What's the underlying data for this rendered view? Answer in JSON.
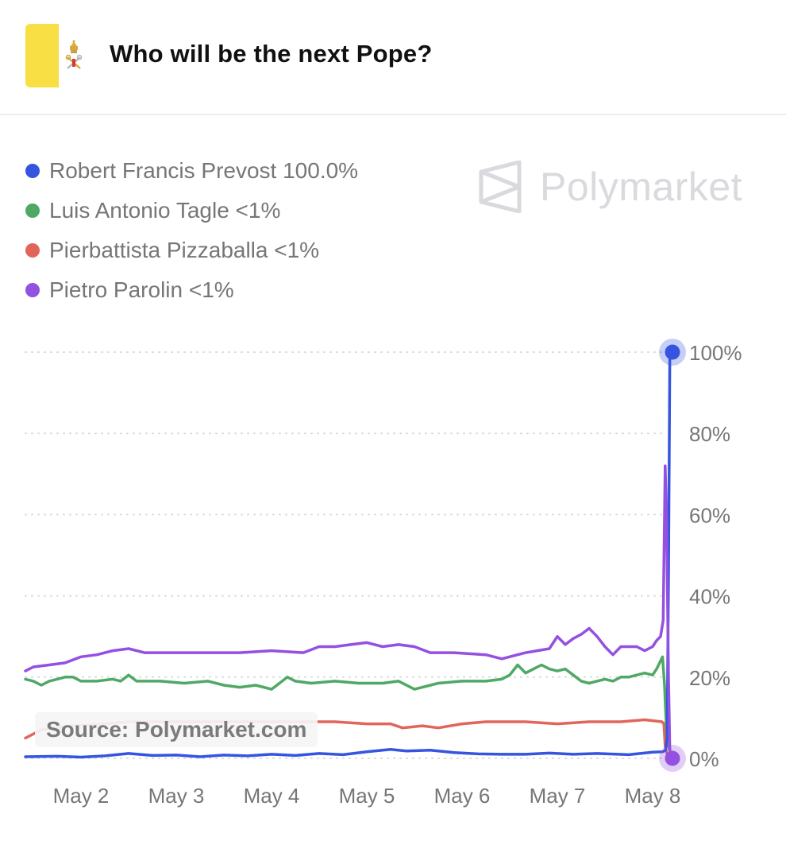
{
  "header": {
    "title": "Who will be the next Pope?",
    "flag_colors": [
      "#f8e044",
      "#ffffff"
    ],
    "emblem_icon": "papal-keys-emblem-icon"
  },
  "legend": {
    "items": [
      {
        "label": "Robert Francis Prevost 100.0%",
        "color": "#3554e0"
      },
      {
        "label": "Luis Antonio Tagle <1%",
        "color": "#4fa865"
      },
      {
        "label": "Pierbattista Pizzaballa <1%",
        "color": "#e2655b"
      },
      {
        "label": "Pietro Parolin <1%",
        "color": "#9450e0"
      }
    ]
  },
  "logo": {
    "text": "Polymarket",
    "icon": "polymarket-logo-icon"
  },
  "source": "Source: Polymarket.com",
  "chart_data": {
    "type": "line",
    "x_unit": "date",
    "xlim": [
      "May 1 22:00",
      "May 8 17:00"
    ],
    "x_ticks": [
      {
        "label": "May 2",
        "value": "May 2 12:00"
      },
      {
        "label": "May 3",
        "value": "May 3 12:00"
      },
      {
        "label": "May 4",
        "value": "May 4 12:00"
      },
      {
        "label": "May 5",
        "value": "May 5 12:00"
      },
      {
        "label": "May 6",
        "value": "May 6 12:00"
      },
      {
        "label": "May 7",
        "value": "May 7 12:00"
      },
      {
        "label": "May 8",
        "value": "May 8 12:00"
      }
    ],
    "y_ticks": [
      {
        "label": "100%",
        "value": 100
      },
      {
        "label": "80%",
        "value": 80
      },
      {
        "label": "60%",
        "value": 60
      },
      {
        "label": "40%",
        "value": 40
      },
      {
        "label": "20%",
        "value": 20
      },
      {
        "label": "0%",
        "value": 0
      }
    ],
    "ylim": [
      0,
      100
    ],
    "grid": "horizontal dotted",
    "y_axis_position": "right",
    "series": [
      {
        "name": "Pierbattista Pizzaballa",
        "color": "#e2655b",
        "points": [
          [
            "May 1 22:00",
            5
          ],
          [
            "May 2 02:00",
            7
          ],
          [
            "May 2 10:00",
            8
          ],
          [
            "May 2 18:00",
            8.5
          ],
          [
            "May 3 00:00",
            9
          ],
          [
            "May 3 08:00",
            9
          ],
          [
            "May 3 20:00",
            9
          ],
          [
            "May 4 06:00",
            9
          ],
          [
            "May 4 18:00",
            9
          ],
          [
            "May 5 04:00",
            9
          ],
          [
            "May 5 12:00",
            8.5
          ],
          [
            "May 5 18:00",
            8.5
          ],
          [
            "May 5 21:00",
            7.5
          ],
          [
            "May 6 02:00",
            8
          ],
          [
            "May 6 06:00",
            7.5
          ],
          [
            "May 6 12:00",
            8.5
          ],
          [
            "May 6 18:00",
            9
          ],
          [
            "May 7 04:00",
            9
          ],
          [
            "May 7 12:00",
            8.5
          ],
          [
            "May 7 20:00",
            9
          ],
          [
            "May 8 04:00",
            9
          ],
          [
            "May 8 10:00",
            9.5
          ],
          [
            "May 8 14:20",
            9
          ],
          [
            "May 8 14:50",
            8.5
          ],
          [
            "May 8 15:10",
            3
          ],
          [
            "May 8 15:40",
            1
          ],
          [
            "May 8 17:00",
            0
          ]
        ]
      },
      {
        "name": "Luis Antonio Tagle",
        "color": "#4fa865",
        "points": [
          [
            "May 1 22:00",
            19.5
          ],
          [
            "May 2 00:00",
            19
          ],
          [
            "May 2 02:00",
            18
          ],
          [
            "May 2 04:00",
            19
          ],
          [
            "May 2 06:00",
            19.5
          ],
          [
            "May 2 08:00",
            20
          ],
          [
            "May 2 10:00",
            20
          ],
          [
            "May 2 12:00",
            19
          ],
          [
            "May 2 16:00",
            19
          ],
          [
            "May 2 20:00",
            19.5
          ],
          [
            "May 2 22:00",
            19
          ],
          [
            "May 3 00:00",
            20.5
          ],
          [
            "May 3 02:00",
            19
          ],
          [
            "May 3 08:00",
            19
          ],
          [
            "May 3 14:00",
            18.5
          ],
          [
            "May 3 20:00",
            19
          ],
          [
            "May 4 00:00",
            18
          ],
          [
            "May 4 04:00",
            17.5
          ],
          [
            "May 4 08:00",
            18
          ],
          [
            "May 4 12:00",
            17
          ],
          [
            "May 4 14:00",
            18.5
          ],
          [
            "May 4 16:00",
            20
          ],
          [
            "May 4 18:00",
            19
          ],
          [
            "May 4 22:00",
            18.5
          ],
          [
            "May 5 04:00",
            19
          ],
          [
            "May 5 10:00",
            18.5
          ],
          [
            "May 5 16:00",
            18.5
          ],
          [
            "May 5 20:00",
            19
          ],
          [
            "May 6 00:00",
            17
          ],
          [
            "May 6 02:00",
            17.5
          ],
          [
            "May 6 06:00",
            18.5
          ],
          [
            "May 6 12:00",
            19
          ],
          [
            "May 6 18:00",
            19
          ],
          [
            "May 6 22:00",
            19.5
          ],
          [
            "May 7 00:00",
            20.5
          ],
          [
            "May 7 02:00",
            23
          ],
          [
            "May 7 04:00",
            21
          ],
          [
            "May 7 06:00",
            22
          ],
          [
            "May 7 08:00",
            23
          ],
          [
            "May 7 10:00",
            22
          ],
          [
            "May 7 12:00",
            21.5
          ],
          [
            "May 7 14:00",
            22
          ],
          [
            "May 7 16:00",
            20.5
          ],
          [
            "May 7 18:00",
            19
          ],
          [
            "May 7 20:00",
            18.5
          ],
          [
            "May 7 22:00",
            19
          ],
          [
            "May 8 00:00",
            19.5
          ],
          [
            "May 8 02:00",
            19
          ],
          [
            "May 8 04:00",
            20
          ],
          [
            "May 8 06:00",
            20
          ],
          [
            "May 8 08:00",
            20.5
          ],
          [
            "May 8 10:00",
            21
          ],
          [
            "May 8 12:00",
            20.5
          ],
          [
            "May 8 13:00",
            22
          ],
          [
            "May 8 14:00",
            24
          ],
          [
            "May 8 14:30",
            25
          ],
          [
            "May 8 15:00",
            18
          ],
          [
            "May 8 15:15",
            12
          ],
          [
            "May 8 15:40",
            4
          ],
          [
            "May 8 17:00",
            0
          ]
        ]
      },
      {
        "name": "Robert Francis Prevost",
        "color": "#3554e0",
        "points": [
          [
            "May 1 22:00",
            0.4
          ],
          [
            "May 2 06:00",
            0.5
          ],
          [
            "May 2 12:00",
            0.3
          ],
          [
            "May 2 18:00",
            0.6
          ],
          [
            "May 3 00:00",
            1.2
          ],
          [
            "May 3 06:00",
            0.7
          ],
          [
            "May 3 12:00",
            0.8
          ],
          [
            "May 3 18:00",
            0.4
          ],
          [
            "May 4 00:00",
            0.8
          ],
          [
            "May 4 06:00",
            0.6
          ],
          [
            "May 4 12:00",
            1
          ],
          [
            "May 4 18:00",
            0.7
          ],
          [
            "May 5 00:00",
            1.2
          ],
          [
            "May 5 06:00",
            0.9
          ],
          [
            "May 5 12:00",
            1.6
          ],
          [
            "May 5 18:00",
            2.2
          ],
          [
            "May 5 22:00",
            1.8
          ],
          [
            "May 6 04:00",
            2
          ],
          [
            "May 6 10:00",
            1.4
          ],
          [
            "May 6 16:00",
            1.1
          ],
          [
            "May 6 22:00",
            1
          ],
          [
            "May 7 04:00",
            1
          ],
          [
            "May 7 10:00",
            1.3
          ],
          [
            "May 7 16:00",
            1
          ],
          [
            "May 7 22:00",
            1.2
          ],
          [
            "May 8 06:00",
            0.9
          ],
          [
            "May 8 12:00",
            1.5
          ],
          [
            "May 8 14:30",
            1.6
          ],
          [
            "May 8 15:15",
            2
          ],
          [
            "May 8 15:40",
            5
          ],
          [
            "May 8 16:00",
            45
          ],
          [
            "May 8 16:20",
            100
          ],
          [
            "May 8 17:00",
            100
          ]
        ]
      },
      {
        "name": "Pietro Parolin",
        "color": "#9450e0",
        "points": [
          [
            "May 1 22:00",
            21.5
          ],
          [
            "May 2 00:00",
            22.5
          ],
          [
            "May 2 04:00",
            23
          ],
          [
            "May 2 08:00",
            23.5
          ],
          [
            "May 2 12:00",
            25
          ],
          [
            "May 2 16:00",
            25.5
          ],
          [
            "May 2 20:00",
            26.5
          ],
          [
            "May 3 00:00",
            27
          ],
          [
            "May 3 04:00",
            26
          ],
          [
            "May 3 12:00",
            26
          ],
          [
            "May 3 20:00",
            26
          ],
          [
            "May 4 04:00",
            26
          ],
          [
            "May 4 12:00",
            26.5
          ],
          [
            "May 4 20:00",
            26
          ],
          [
            "May 5 00:00",
            27.5
          ],
          [
            "May 5 04:00",
            27.5
          ],
          [
            "May 5 08:00",
            28
          ],
          [
            "May 5 12:00",
            28.5
          ],
          [
            "May 5 16:00",
            27.5
          ],
          [
            "May 5 20:00",
            28
          ],
          [
            "May 6 00:00",
            27.5
          ],
          [
            "May 6 04:00",
            26
          ],
          [
            "May 6 10:00",
            26
          ],
          [
            "May 6 18:00",
            25.5
          ],
          [
            "May 6 22:00",
            24.5
          ],
          [
            "May 7 04:00",
            26
          ],
          [
            "May 7 10:00",
            27
          ],
          [
            "May 7 12:00",
            30
          ],
          [
            "May 7 14:00",
            28
          ],
          [
            "May 7 16:00",
            29.5
          ],
          [
            "May 7 18:00",
            30.5
          ],
          [
            "May 7 20:00",
            32
          ],
          [
            "May 7 22:00",
            30
          ],
          [
            "May 8 00:00",
            27.5
          ],
          [
            "May 8 02:00",
            25.5
          ],
          [
            "May 8 04:00",
            27.5
          ],
          [
            "May 8 08:00",
            27.5
          ],
          [
            "May 8 10:00",
            26.5
          ],
          [
            "May 8 12:00",
            27.5
          ],
          [
            "May 8 13:00",
            29
          ],
          [
            "May 8 14:00",
            30
          ],
          [
            "May 8 14:40",
            34
          ],
          [
            "May 8 15:10",
            72
          ],
          [
            "May 8 15:30",
            60
          ],
          [
            "May 8 16:00",
            20
          ],
          [
            "May 8 16:20",
            2
          ],
          [
            "May 8 17:00",
            0
          ]
        ]
      }
    ],
    "end_markers": [
      {
        "series": "Robert Francis Prevost",
        "x": "May 8 17:00",
        "y": 100
      },
      {
        "series": "Pietro Parolin",
        "x": "May 8 17:00",
        "y": 0
      }
    ]
  }
}
